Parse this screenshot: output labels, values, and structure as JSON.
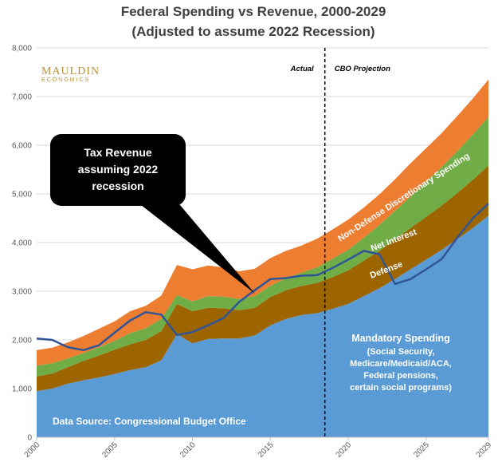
{
  "chart_data": {
    "type": "area",
    "title": "Federal Spending vs Revenue, 2000-2029",
    "subtitle": "(Adjusted to assume 2022 Recession)",
    "x": [
      2000,
      2001,
      2002,
      2003,
      2004,
      2005,
      2006,
      2007,
      2008,
      2009,
      2010,
      2011,
      2012,
      2013,
      2014,
      2015,
      2016,
      2017,
      2018,
      2019,
      2020,
      2021,
      2022,
      2023,
      2024,
      2025,
      2026,
      2027,
      2028,
      2029
    ],
    "xticks": [
      "2000",
      "2005",
      "2010",
      "2015",
      "2020",
      "2025",
      "2029"
    ],
    "yticks": [
      "0",
      "1,000",
      "2,000",
      "3,000",
      "4,000",
      "5,000",
      "6,000",
      "7,000",
      "8,000"
    ],
    "ylim": [
      0,
      8000
    ],
    "series": [
      {
        "name": "Mandatory Spending",
        "color": "#5b9bd5",
        "values": [
          950,
          1000,
          1100,
          1170,
          1230,
          1300,
          1380,
          1440,
          1580,
          2120,
          1930,
          2020,
          2030,
          2030,
          2090,
          2300,
          2430,
          2510,
          2550,
          2640,
          2740,
          2900,
          3060,
          3250,
          3450,
          3650,
          3850,
          4070,
          4300,
          4550
        ]
      },
      {
        "name": "Defense",
        "color": "#9c6500",
        "values": [
          300,
          310,
          340,
          400,
          450,
          500,
          530,
          560,
          600,
          620,
          660,
          640,
          620,
          580,
          570,
          580,
          590,
          600,
          620,
          650,
          690,
          730,
          770,
          810,
          850,
          880,
          910,
          950,
          990,
          1030
        ]
      },
      {
        "name": "Net Interest",
        "color": "#70ad47",
        "values": [
          220,
          210,
          180,
          160,
          170,
          180,
          230,
          240,
          250,
          180,
          200,
          240,
          240,
          230,
          240,
          230,
          250,
          270,
          320,
          380,
          420,
          470,
          530,
          590,
          650,
          720,
          790,
          860,
          930,
          1000
        ]
      },
      {
        "name": "Non-Defense Discretionary Spending",
        "color": "#ed7d31",
        "values": [
          320,
          320,
          330,
          350,
          380,
          400,
          450,
          460,
          480,
          620,
          660,
          630,
          600,
          570,
          560,
          570,
          560,
          560,
          590,
          600,
          620,
          620,
          630,
          650,
          680,
          690,
          700,
          720,
          740,
          770
        ]
      }
    ],
    "revenue_line": {
      "name": "Tax Revenue assuming 2022 recession",
      "color": "#2f5597",
      "values": [
        2030,
        2000,
        1850,
        1790,
        1890,
        2150,
        2400,
        2570,
        2520,
        2100,
        2160,
        2300,
        2450,
        2780,
        3020,
        3250,
        3270,
        3320,
        3330,
        3480,
        3650,
        3830,
        3760,
        3150,
        3250,
        3450,
        3660,
        4100,
        4500,
        4800
      ]
    },
    "divider_year": 2018.5,
    "divider_labels": {
      "left": "Actual",
      "right": "CBO Projection"
    },
    "band_labels": {
      "nondefense": "Non-Defense Discretionary Spending",
      "interest": "Net Interest",
      "defense": "Defense"
    },
    "mandatory_label_lines": [
      "Mandatory Spending",
      "(Social Security,",
      "Medicare/Medicaid/ACA,",
      "Federal pensions,",
      "certain social programs)"
    ],
    "callout_lines": [
      "Tax Revenue",
      "assuming 2022",
      "recession"
    ],
    "source": "Data Source: Congressional Budget Office",
    "logo": {
      "main": "MAULDIN",
      "sub": "ECONOMICS"
    }
  }
}
